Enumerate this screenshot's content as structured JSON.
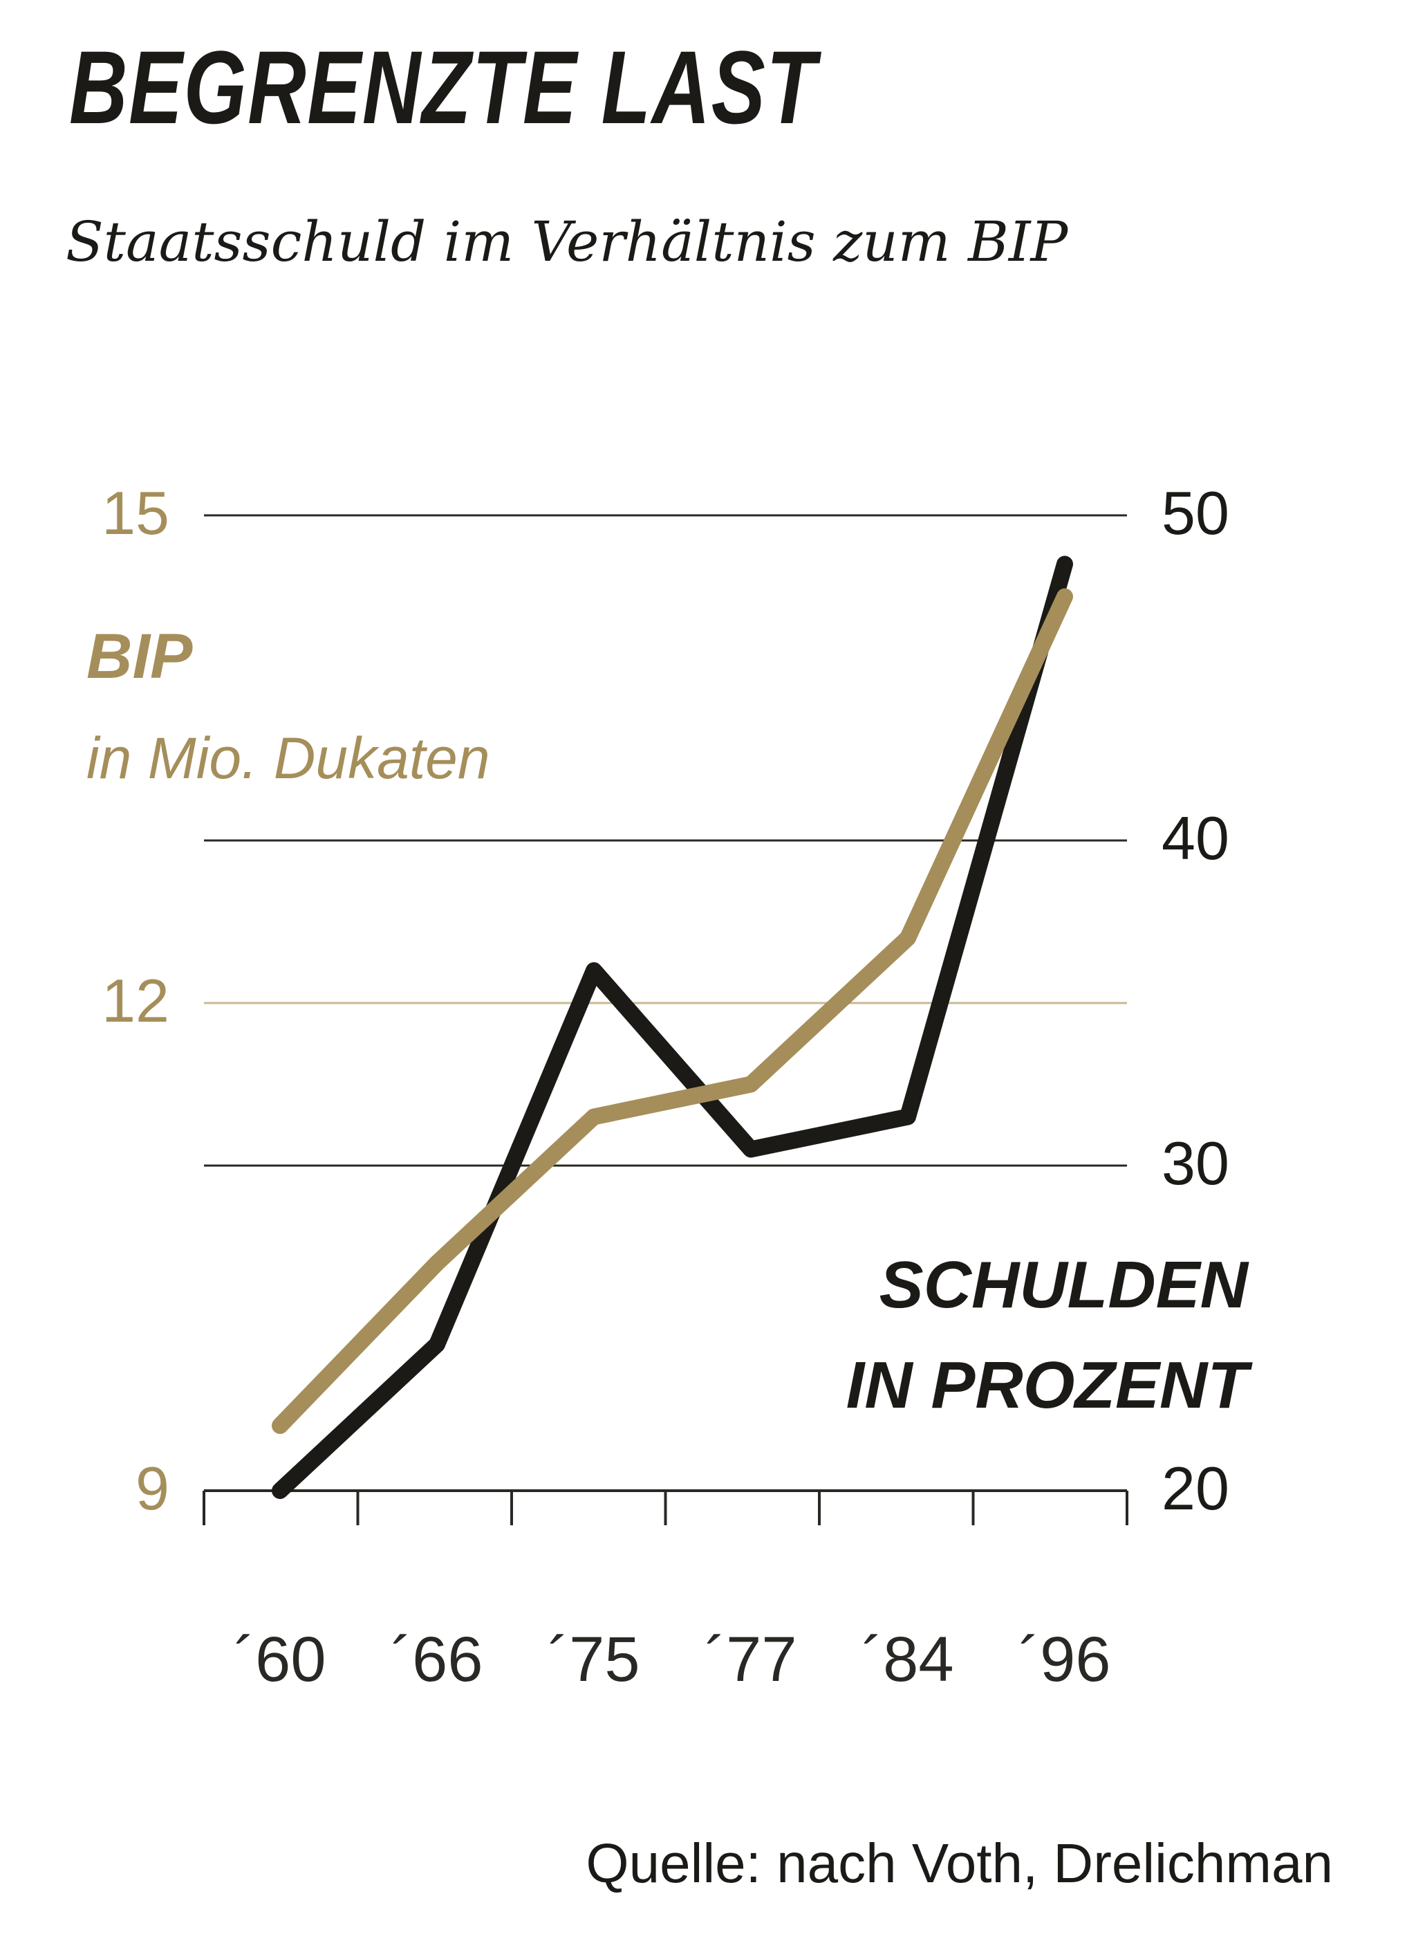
{
  "title": "BEGRENZTE LAST",
  "subtitle": "Staatsschuld im Verhältnis zum BIP",
  "source": "Quelle: nach Voth, Drelichman",
  "chart_data": {
    "type": "line",
    "categories": [
      "´60",
      "´66",
      "´75",
      "´77",
      "´84",
      "´96"
    ],
    "x": [
      1960,
      1966,
      1975,
      1977,
      1984,
      1996
    ],
    "left_axis": {
      "label_line1": "BIP",
      "label_line2": "in Mio. Dukaten",
      "ticks": [
        15,
        12,
        9
      ],
      "ylim": [
        9,
        15
      ],
      "color": "#a58e5a"
    },
    "right_axis": {
      "label_line1": "SCHULDEN",
      "label_line2": "IN PROZENT",
      "ticks": [
        50,
        40,
        30,
        20
      ],
      "ylim": [
        20,
        50
      ],
      "color": "#1c1a17"
    },
    "series": [
      {
        "name": "BIP",
        "axis": "left",
        "color": "#a58e5a",
        "values": [
          9.4,
          10.4,
          11.3,
          11.5,
          12.4,
          14.5
        ]
      },
      {
        "name": "SCHULDEN",
        "axis": "right",
        "color": "#1c1a17",
        "values": [
          20.0,
          24.5,
          36.0,
          30.5,
          31.5,
          48.5
        ]
      }
    ],
    "grid": true
  }
}
